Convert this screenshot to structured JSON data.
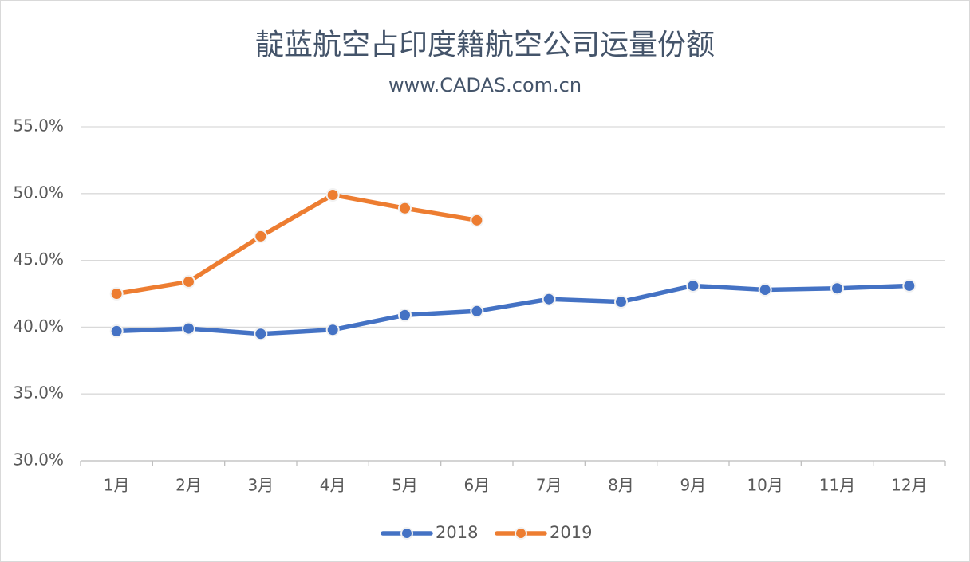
{
  "chart_data": {
    "type": "line",
    "title": "靛蓝航空占印度籍航空公司运量份额",
    "subtitle": "www.CADAS.com.cn",
    "categories": [
      "1月",
      "2月",
      "3月",
      "4月",
      "5月",
      "6月",
      "7月",
      "8月",
      "9月",
      "10月",
      "11月",
      "12月"
    ],
    "series": [
      {
        "name": "2018",
        "color": "#4472c4",
        "values": [
          39.7,
          39.9,
          39.5,
          39.8,
          40.9,
          41.2,
          42.1,
          41.9,
          43.1,
          42.8,
          42.9,
          43.1
        ]
      },
      {
        "name": "2019",
        "color": "#ed7d31",
        "values": [
          42.5,
          43.4,
          46.8,
          49.9,
          48.9,
          48.0,
          null,
          null,
          null,
          null,
          null,
          null
        ]
      }
    ],
    "ylim": [
      30,
      55
    ],
    "yticks": [
      {
        "value": 30,
        "label": "30.0%"
      },
      {
        "value": 35,
        "label": "35.0%"
      },
      {
        "value": 40,
        "label": "40.0%"
      },
      {
        "value": 45,
        "label": "45.0%"
      },
      {
        "value": 50,
        "label": "50.0%"
      },
      {
        "value": 55,
        "label": "55.0%"
      }
    ],
    "grid": true,
    "legend": "bottom"
  }
}
